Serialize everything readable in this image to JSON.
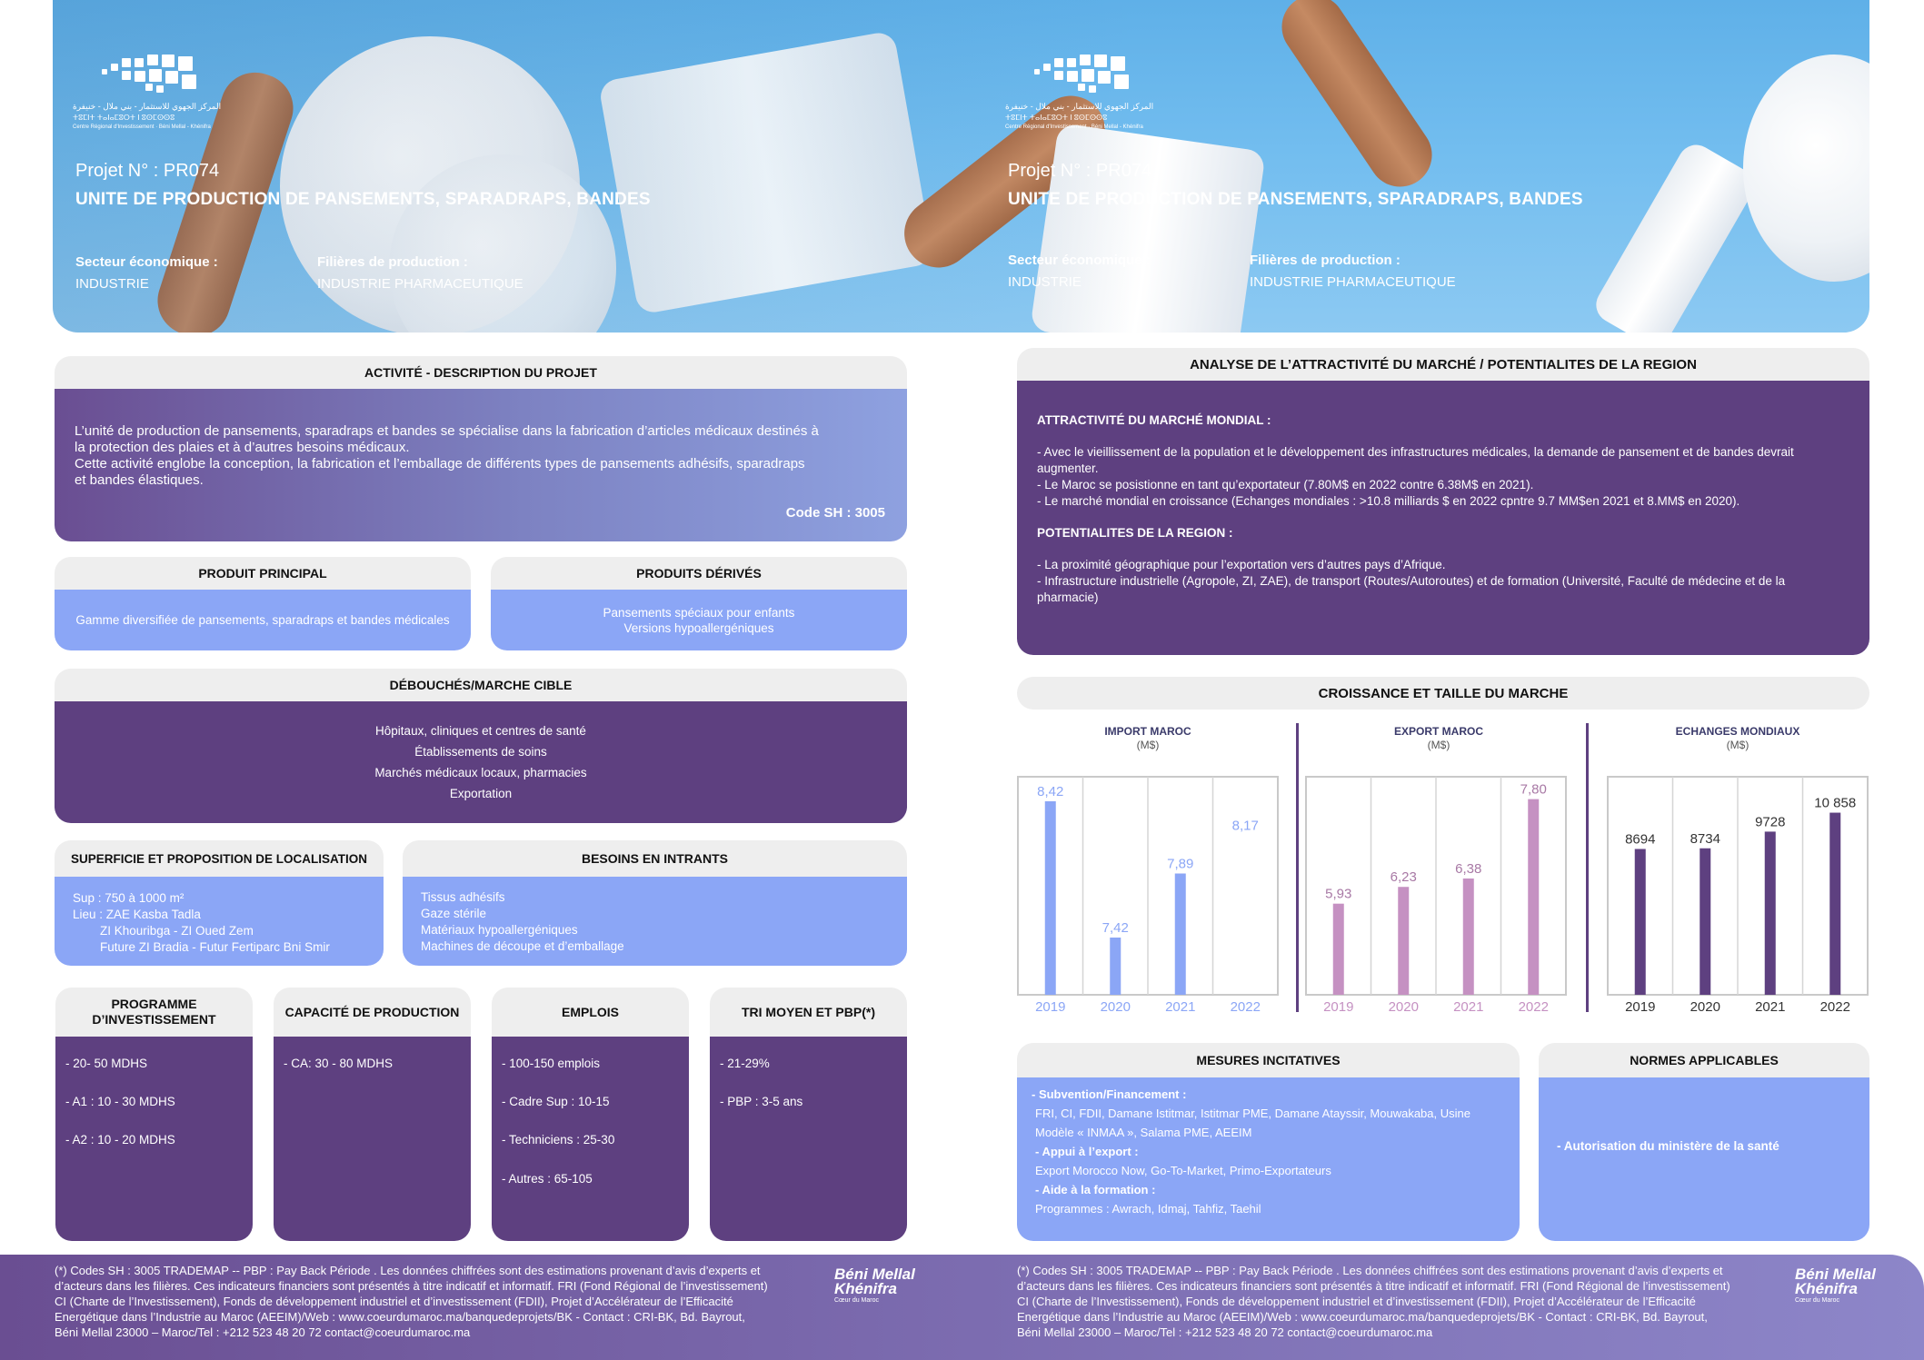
{
  "hero": {
    "logo_lines": [
      "المركز الجهوي للاستثمار - بني ملال - خنيفرة",
      "ⵜⵓⵎⵏⵜ ⵜⴰⵏⴰⵎⵓⵔⵜ ⵏ ⵓⵙⵎⵙⵙⵓ",
      "Centre Régional d'Investissement · Béni Mellal - Khénifra"
    ],
    "project_no": "Projet N° :  PR074",
    "title": "UNITE DE PRODUCTION DE PANSEMENTS, SPARADRAPS, BANDES",
    "secteur_label": "Secteur économique :",
    "secteur_value": "INDUSTRIE",
    "filieres_label": "Filières de production :",
    "filieres_value": "INDUSTRIE PHARMACEUTIQUE"
  },
  "activite": {
    "title": "ACTIVITÉ - DESCRIPTION DU PROJET",
    "lines": [
      "L’unité de production de pansements, sparadraps et bandes se spécialise dans la fabrication d’articles médicaux destinés à",
      "la protection des plaies et à d’autres besoins médicaux.",
      "Cette activité englobe la conception, la fabrication et l’emballage de différents types de pansements adhésifs, sparadraps",
      "et bandes élastiques."
    ],
    "code_sh": "Code SH : 3005"
  },
  "produit_principal": {
    "title": "PRODUIT PRINCIPAL",
    "text": "Gamme diversifiée de pansements, sparadraps et bandes médicales"
  },
  "produits_derives": {
    "title": "PRODUITS DÉRIVÉS",
    "lines": [
      "Pansements spéciaux pour enfants",
      "Versions hypoallergéniques"
    ]
  },
  "debouches": {
    "title": "DÉBOUCHÉS/MARCHE CIBLE",
    "lines": [
      "Hôpitaux, cliniques et centres de santé",
      "Établissements de soins",
      "Marchés médicaux locaux, pharmacies",
      "Exportation"
    ]
  },
  "superficie": {
    "title": "SUPERFICIE ET PROPOSITION DE LOCALISATION",
    "lines": [
      "Sup : 750 à 1000 m²",
      "Lieu : ZAE Kasba Tadla",
      "ZI Khouribga - ZI Oued Zem",
      "Future ZI Bradia - Futur Fertiparc Bni Smir"
    ]
  },
  "besoins": {
    "title": "BESOINS EN INTRANTS",
    "lines": [
      "Tissus adhésifs",
      "Gaze stérile",
      "Matériaux hypoallergéniques",
      "Machines de découpe et d’emballage"
    ]
  },
  "programme": {
    "title_lines": [
      "PROGRAMME",
      "D’INVESTISSEMENT"
    ],
    "items": [
      "- 20- 50 MDHS",
      "- A1 : 10 - 30 MDHS",
      "- A2 : 10 - 20 MDHS"
    ]
  },
  "capacite": {
    "title": "CAPACITÉ DE PRODUCTION",
    "items": [
      "- CA: 30 - 80 MDHS"
    ]
  },
  "emplois": {
    "title": "EMPLOIS",
    "items": [
      "- 100-150 emplois",
      "- Cadre Sup : 10-15",
      "- Techniciens : 25-30",
      "- Autres  : 65-105"
    ]
  },
  "tri": {
    "title": "TRI MOYEN ET PBP(*)",
    "items": [
      "- 21-29%",
      "- PBP : 3-5 ans"
    ]
  },
  "analyse": {
    "title": "ANALYSE DE L’ATTRACTIVITÉ DU MARCHÉ / POTENTIALITES DE LA REGION",
    "h1": "ATTRACTIVITÉ DU MARCHÉ MONDIAL :",
    "mondial_lines": [
      "- Avec le vieillissement de la population et le développement des infrastructures médicales, la demande de pansement et de bandes devrait",
      "augmenter.",
      "- Le Maroc se posistionne en tant qu’exportateur (7.80M$ en 2022 contre 6.38M$ en 2021).",
      "- Le marché mondial en croissance (Echanges mondiales : >10.8 milliards $ en 2022 cpntre 9.7 MM$en 2021 et 8.MM$ en 2020)."
    ],
    "h2": "POTENTIALITES DE LA REGION :",
    "region_lines": [
      "- La proximité géographique pour l’exportation vers d’autres pays d’Afrique.",
      "- Infrastructure industrielle (Agropole, ZI, ZAE), de transport (Routes/Autoroutes) et de formation (Université, Faculté de médecine et de la",
      "pharmacie)"
    ]
  },
  "croissance": {
    "title": "CROISSANCE ET TAILLE DU MARCHE"
  },
  "chart_data": [
    {
      "type": "bar",
      "title": "IMPORT MAROC",
      "unit": "(M$)",
      "categories": [
        "2019",
        "2020",
        "2021",
        "2022"
      ],
      "values": [
        8.42,
        7.42,
        7.89,
        8.17
      ],
      "value_labels": [
        "8,42",
        "7,42",
        "7,89",
        "8,17"
      ],
      "bar_drawn": [
        true,
        true,
        true,
        false
      ],
      "ylim": [
        7.0,
        8.6
      ],
      "color": "#8ba6f6",
      "label_color": "#8ba6f6",
      "grid": true
    },
    {
      "type": "bar",
      "title": "EXPORT MAROC",
      "unit": "(M$)",
      "categories": [
        "2019",
        "2020",
        "2021",
        "2022"
      ],
      "values": [
        5.93,
        6.23,
        6.38,
        7.8
      ],
      "value_labels": [
        "5,93",
        "6,23",
        "6,38",
        "7,80"
      ],
      "bar_drawn": [
        true,
        true,
        true,
        true
      ],
      "ylim": [
        4.3,
        8.2
      ],
      "color": "#c591c2",
      "label_color": "#a879a5",
      "grid": true
    },
    {
      "type": "bar",
      "title": "ECHANGES MONDIAUX",
      "unit": "(M$)",
      "categories": [
        "2019",
        "2020",
        "2021",
        "2022"
      ],
      "values": [
        8694,
        8734,
        9728,
        10858
      ],
      "value_labels": [
        "8694",
        "8734",
        "9728",
        "10 858"
      ],
      "bar_drawn": [
        true,
        true,
        true,
        true
      ],
      "ylim": [
        0,
        13000
      ],
      "color": "#5e4080",
      "label_color": "#333333",
      "grid": true
    }
  ],
  "mesures": {
    "title": "MESURES INCITATIVES",
    "h_sub": " - Subvention/Financement :",
    "sub_lines": [
      "FRI, CI, FDII, Damane Istitmar, Istitmar PME, Damane Atayssir, Mouwakaba, Usine",
      "Modèle « INMAA », Salama PME, AEEIM"
    ],
    "h_export": "- Appui à l’export :",
    "export_line": "Export Morocco Now, Go-To-Market, Primo-Exportateurs",
    "h_formation": "- Aide à la formation :",
    "formation_line": "Programmes :  Awrach, Idmaj, Tahfiz, Taehil"
  },
  "normes": {
    "title": "NORMES APPLICABLES",
    "text": "- Autorisation du ministère de la santé"
  },
  "footer": {
    "lines": [
      "(*) Codes SH : 3005 TRADEMAP -- PBP : Pay Back Période . Les données chiffrées sont des estimations provenant d’avis d’experts et",
      "d’acteurs dans les filières. Ces indicateurs financiers sont présentés à titre indicatif et informatif. FRI (Fond Régional de l’investissement)",
      "CI (Charte de l’Investissement), Fonds de développement industriel et d’investissement (FDII), Projet d’Accélérateur de l’Efficacité",
      "Energétique dans l’Industrie au Maroc (AEEIM)/Web : www.coeurdumaroc.ma/banquedeprojets/BK -   Contact : CRI-BK, Bd. Bayrout,",
      "Béni Mellal 23000 – Maroc/Tel : +212 523 48 20 72 contact@coeurdumaroc.ma"
    ],
    "brand_lines": [
      "Béni Mellal",
      "Khénifra"
    ],
    "brand_tag": "Cœur du Maroc"
  },
  "colors": {
    "violet": "#5e4080",
    "lavender": "#8ba6f6",
    "header_gray": "#eeeeee"
  }
}
